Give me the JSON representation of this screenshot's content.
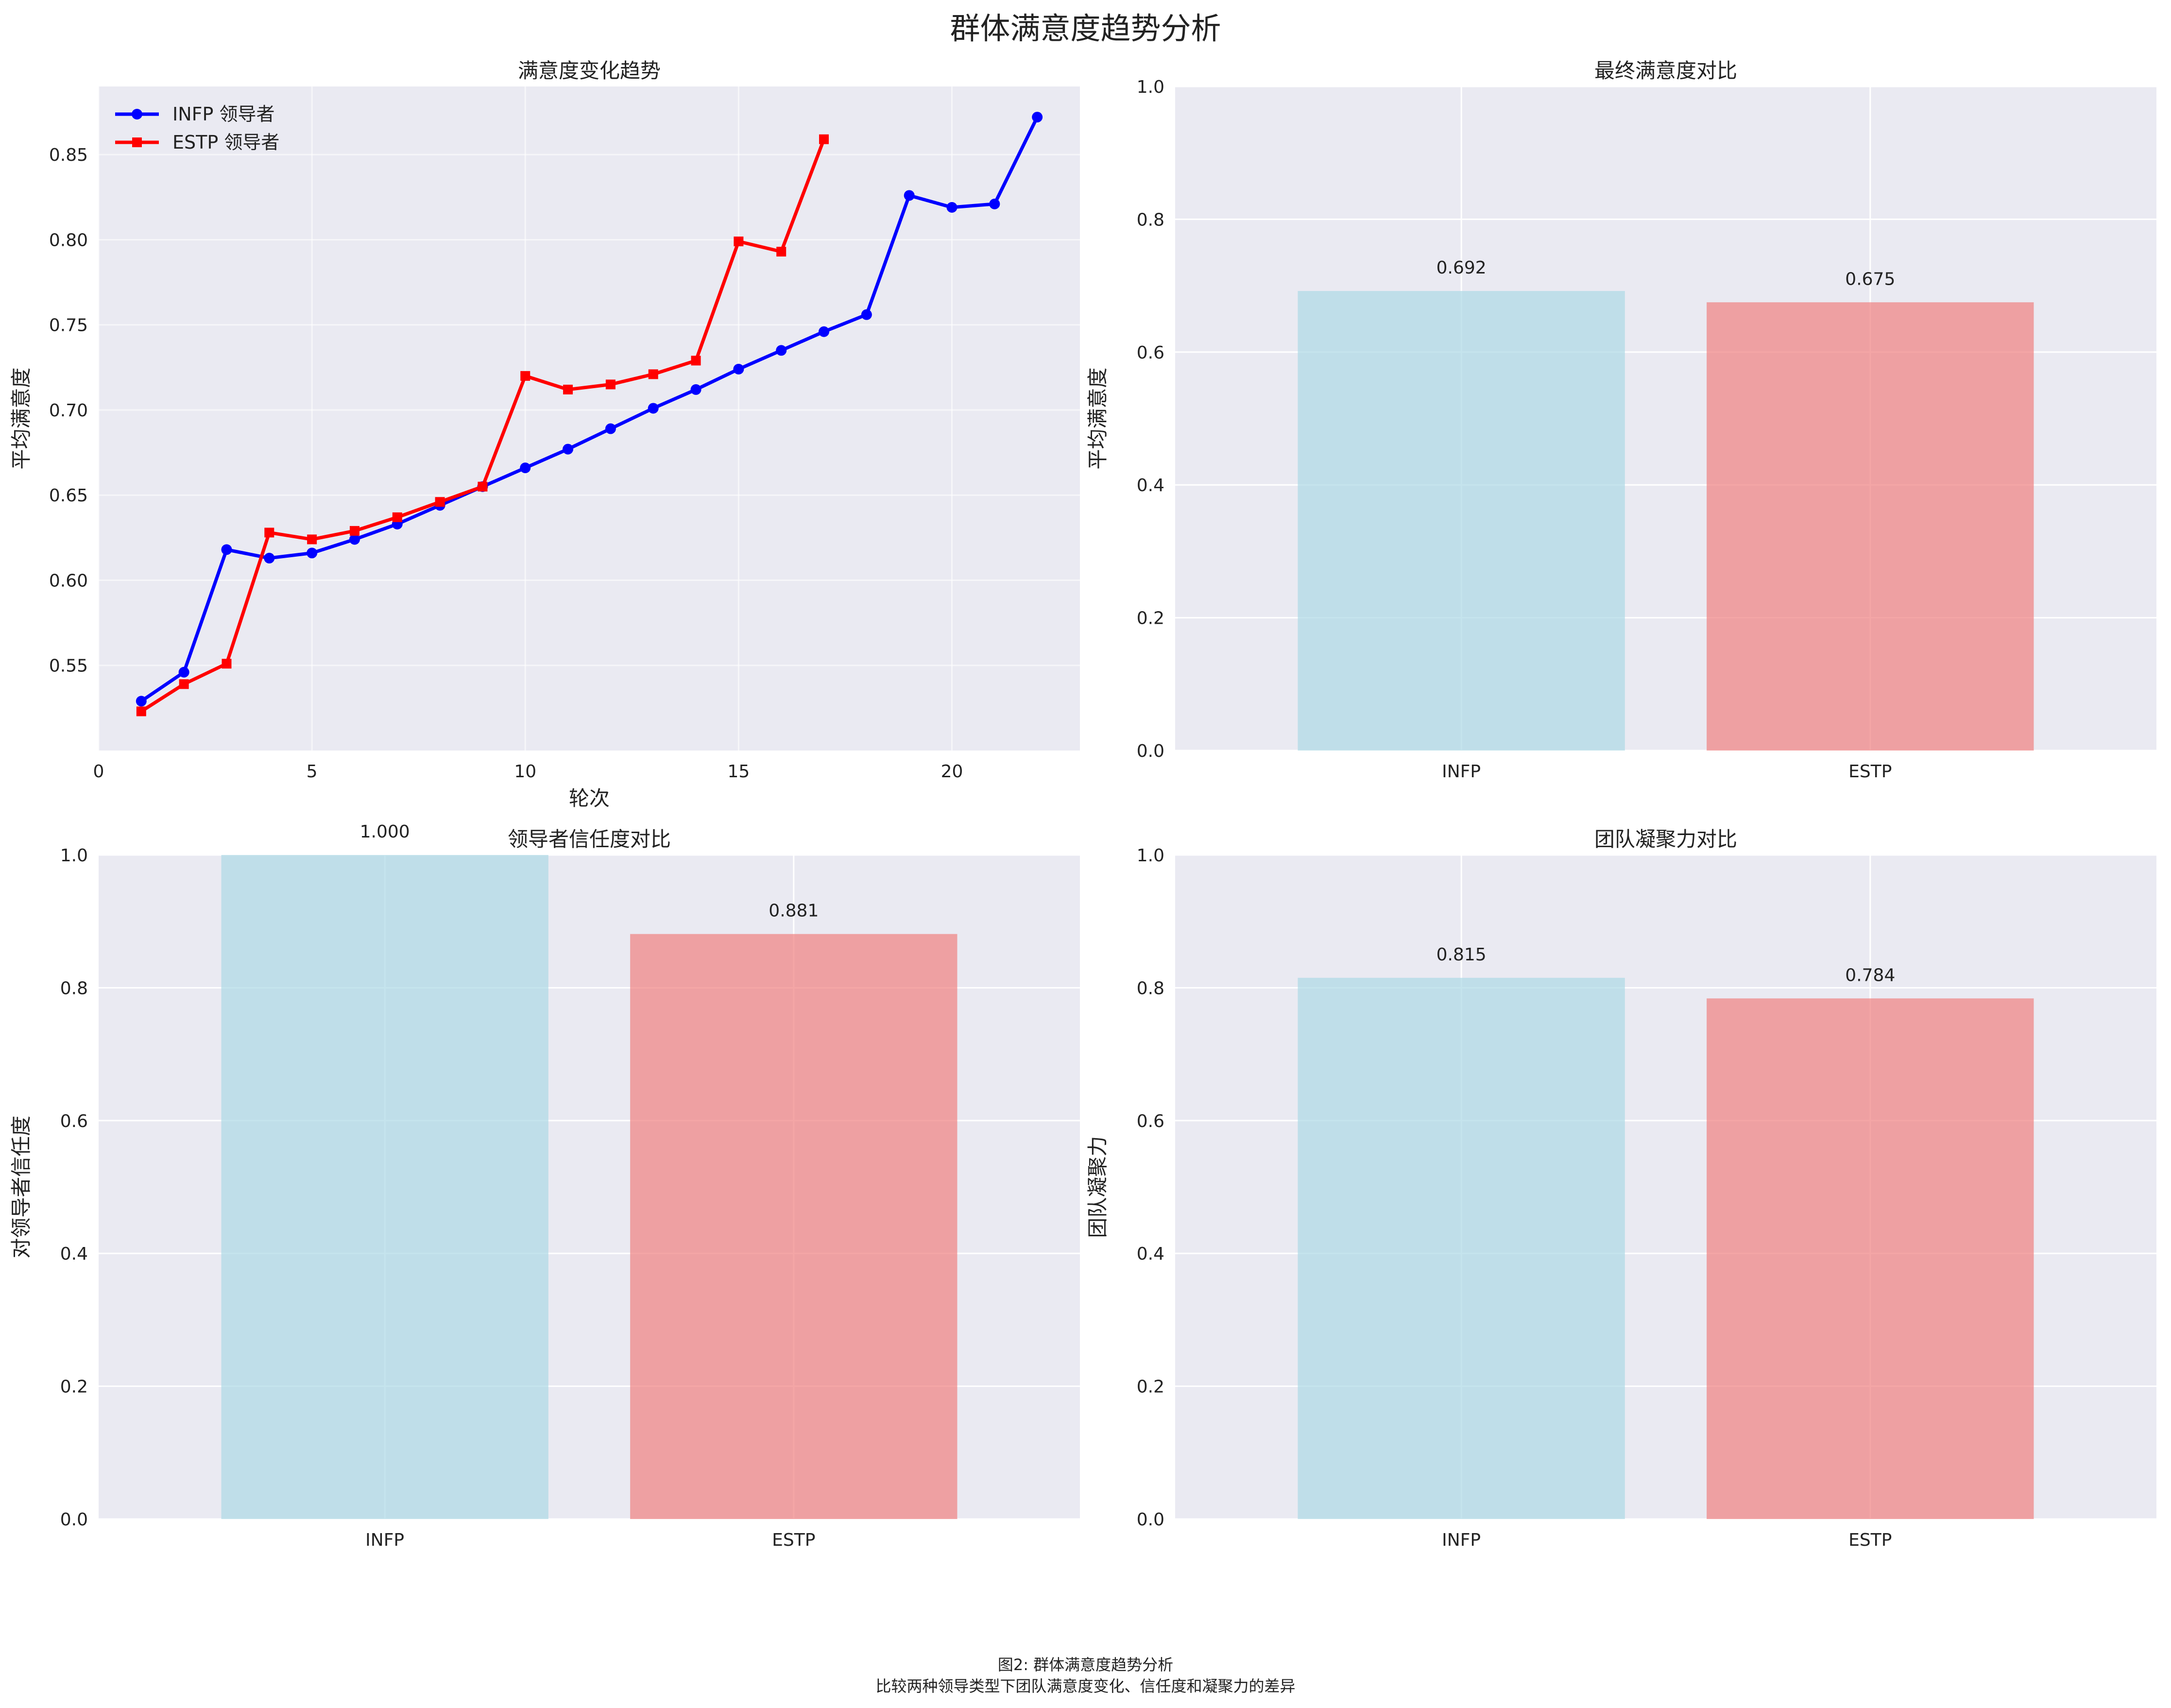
{
  "figure": {
    "suptitle": "群体满意度趋势分析",
    "caption_line1": "图2: 群体满意度趋势分析",
    "caption_line2": "比较两种领导类型下团队满意度变化、信任度和凝聚力的差异"
  },
  "colors": {
    "plot_background": "#eaeaf2",
    "grid": "#ffffff",
    "infp_line": "#0000ff",
    "estp_line": "#ff0000",
    "infp_bar": "#add8e6",
    "estp_bar": "#f08080"
  },
  "chart_data": [
    {
      "type": "line",
      "title": "满意度变化趋势",
      "xlabel": "轮次",
      "ylabel": "平均满意度",
      "xlim": [
        0,
        23
      ],
      "ylim": [
        0.5,
        0.89
      ],
      "xticks": [
        0,
        5,
        10,
        15,
        20
      ],
      "yticks": [
        0.55,
        0.6,
        0.65,
        0.7,
        0.75,
        0.8,
        0.85
      ],
      "grid": true,
      "legend": "top-left",
      "series": [
        {
          "name": "INFP 领导者",
          "color": "#0000ff",
          "marker": "circle",
          "x": [
            1,
            2,
            3,
            4,
            5,
            6,
            7,
            8,
            9,
            10,
            11,
            12,
            13,
            14,
            15,
            16,
            17,
            18,
            19,
            20,
            21,
            22
          ],
          "values": [
            0.529,
            0.546,
            0.618,
            0.613,
            0.616,
            0.624,
            0.633,
            0.644,
            0.655,
            0.666,
            0.677,
            0.689,
            0.701,
            0.712,
            0.724,
            0.735,
            0.746,
            0.756,
            0.826,
            0.819,
            0.821,
            0.872
          ]
        },
        {
          "name": "ESTP 领导者",
          "color": "#ff0000",
          "marker": "square",
          "x": [
            1,
            2,
            3,
            4,
            5,
            6,
            7,
            8,
            9,
            10,
            11,
            12,
            13,
            14,
            15,
            16,
            17
          ],
          "values": [
            0.523,
            0.539,
            0.551,
            0.628,
            0.624,
            0.629,
            0.637,
            0.646,
            0.655,
            0.72,
            0.712,
            0.715,
            0.721,
            0.729,
            0.799,
            0.793,
            0.859
          ]
        }
      ]
    },
    {
      "type": "bar",
      "title": "最终满意度对比",
      "xlabel": "",
      "ylabel": "平均满意度",
      "categories": [
        "INFP",
        "ESTP"
      ],
      "values": [
        0.692,
        0.675
      ],
      "value_labels": [
        "0.692",
        "0.675"
      ],
      "colors": [
        "#add8e6",
        "#f08080"
      ],
      "ylim": [
        0,
        1.0
      ],
      "yticks": [
        0.0,
        0.2,
        0.4,
        0.6,
        0.8,
        1.0
      ],
      "grid": true
    },
    {
      "type": "bar",
      "title": "领导者信任度对比",
      "xlabel": "",
      "ylabel": "对领导者信任度",
      "categories": [
        "INFP",
        "ESTP"
      ],
      "values": [
        1.0,
        0.881
      ],
      "value_labels": [
        "1.000",
        "0.881"
      ],
      "colors": [
        "#add8e6",
        "#f08080"
      ],
      "ylim": [
        0,
        1.0
      ],
      "yticks": [
        0.0,
        0.2,
        0.4,
        0.6,
        0.8,
        1.0
      ],
      "grid": true
    },
    {
      "type": "bar",
      "title": "团队凝聚力对比",
      "xlabel": "",
      "ylabel": "团队凝聚力",
      "categories": [
        "INFP",
        "ESTP"
      ],
      "values": [
        0.815,
        0.784
      ],
      "value_labels": [
        "0.815",
        "0.784"
      ],
      "colors": [
        "#add8e6",
        "#f08080"
      ],
      "ylim": [
        0,
        1.0
      ],
      "yticks": [
        0.0,
        0.2,
        0.4,
        0.6,
        0.8,
        1.0
      ],
      "grid": true
    }
  ]
}
